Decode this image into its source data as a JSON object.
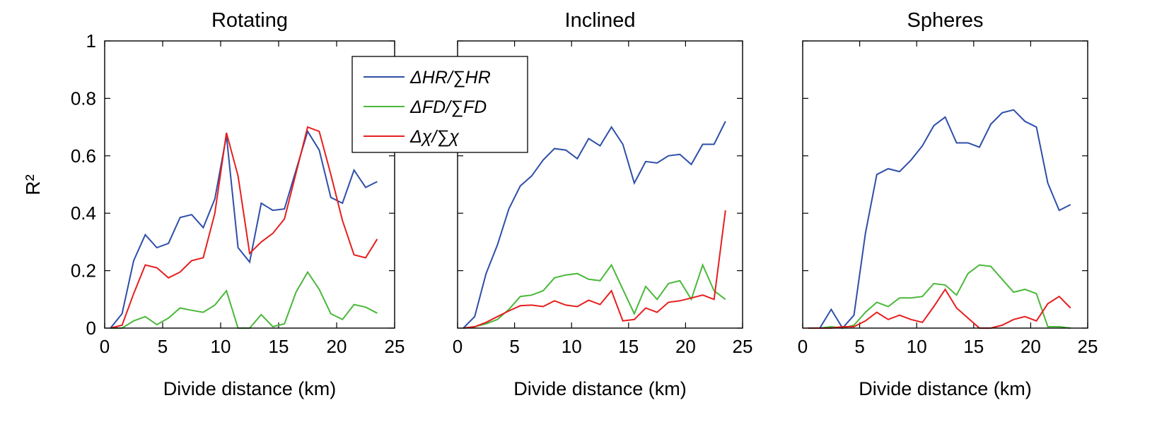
{
  "figure": {
    "ylabel": "R²"
  },
  "legend": {
    "entries": [
      {
        "label": "ΔHR/∑HR",
        "color": "#2e4ea8"
      },
      {
        "label": "ΔFD/∑FD",
        "color": "#4ab83a"
      },
      {
        "label": "Δχ/∑χ",
        "color": "#e61e1e"
      }
    ]
  },
  "chart_data": [
    {
      "type": "line",
      "title": "Rotating",
      "xlabel": "Divide distance (km)",
      "ylabel": "R²",
      "xlim": [
        0,
        25
      ],
      "ylim": [
        0,
        1
      ],
      "xticks": [
        0,
        5,
        10,
        15,
        20,
        25
      ],
      "yticks": [
        0,
        0.2,
        0.4,
        0.6,
        0.8,
        1
      ],
      "ytick_labels": [
        "0",
        "0.2",
        "0.4",
        "0.6",
        "0.8",
        "1"
      ],
      "x": [
        0.5,
        1.5,
        2.5,
        3.5,
        4.5,
        5.5,
        6.5,
        7.5,
        8.5,
        9.5,
        10.5,
        11.5,
        12.5,
        13.5,
        14.5,
        15.5,
        16.5,
        17.5,
        18.5,
        19.5,
        20.5,
        21.5,
        22.5,
        23.5
      ],
      "series": [
        {
          "name": "ΔHR/∑HR",
          "color": "#2e4ea8",
          "values": [
            0.0,
            0.05,
            0.235,
            0.325,
            0.28,
            0.295,
            0.385,
            0.395,
            0.35,
            0.45,
            0.67,
            0.28,
            0.23,
            0.435,
            0.41,
            0.415,
            0.55,
            0.685,
            0.62,
            0.455,
            0.435,
            0.55,
            0.49,
            0.51
          ]
        },
        {
          "name": "ΔFD/∑FD",
          "color": "#4ab83a",
          "values": [
            0.0,
            0.0,
            0.025,
            0.04,
            0.012,
            0.035,
            0.07,
            0.062,
            0.055,
            0.08,
            0.13,
            0.0,
            0.0,
            0.047,
            0.005,
            0.015,
            0.125,
            0.195,
            0.135,
            0.05,
            0.03,
            0.082,
            0.073,
            0.052
          ]
        },
        {
          "name": "Δχ/∑χ",
          "color": "#e61e1e",
          "values": [
            0.0,
            0.01,
            0.12,
            0.22,
            0.21,
            0.175,
            0.195,
            0.235,
            0.245,
            0.4,
            0.68,
            0.53,
            0.26,
            0.3,
            0.33,
            0.38,
            0.54,
            0.7,
            0.685,
            0.535,
            0.375,
            0.255,
            0.245,
            0.31
          ]
        }
      ]
    },
    {
      "type": "line",
      "title": "Inclined",
      "xlabel": "Divide distance (km)",
      "xlim": [
        0,
        25
      ],
      "ylim": [
        0,
        1
      ],
      "xticks": [
        0,
        5,
        10,
        15,
        20,
        25
      ],
      "x": [
        0.5,
        1.5,
        2.5,
        3.5,
        4.5,
        5.5,
        6.5,
        7.5,
        8.5,
        9.5,
        10.5,
        11.5,
        12.5,
        13.5,
        14.5,
        15.5,
        16.5,
        17.5,
        18.5,
        19.5,
        20.5,
        21.5,
        22.5,
        23.5
      ],
      "series": [
        {
          "name": "ΔHR/∑HR",
          "color": "#2e4ea8",
          "values": [
            0.0,
            0.04,
            0.19,
            0.29,
            0.415,
            0.495,
            0.53,
            0.585,
            0.625,
            0.62,
            0.59,
            0.66,
            0.635,
            0.7,
            0.64,
            0.505,
            0.58,
            0.575,
            0.6,
            0.605,
            0.57,
            0.64,
            0.64,
            0.72
          ]
        },
        {
          "name": "ΔFD/∑FD",
          "color": "#4ab83a",
          "values": [
            0.0,
            0.005,
            0.015,
            0.03,
            0.065,
            0.11,
            0.115,
            0.13,
            0.175,
            0.185,
            0.19,
            0.17,
            0.165,
            0.22,
            0.135,
            0.05,
            0.145,
            0.1,
            0.155,
            0.165,
            0.1,
            0.22,
            0.13,
            0.1
          ]
        },
        {
          "name": "Δχ/∑χ",
          "color": "#e61e1e",
          "values": [
            0.0,
            0.005,
            0.02,
            0.04,
            0.06,
            0.078,
            0.08,
            0.075,
            0.095,
            0.08,
            0.075,
            0.097,
            0.082,
            0.13,
            0.025,
            0.03,
            0.07,
            0.055,
            0.09,
            0.095,
            0.105,
            0.115,
            0.1,
            0.41
          ]
        }
      ]
    },
    {
      "type": "line",
      "title": "Spheres",
      "xlabel": "Divide distance (km)",
      "xlim": [
        0,
        25
      ],
      "ylim": [
        0,
        1
      ],
      "xticks": [
        0,
        5,
        10,
        15,
        20,
        25
      ],
      "x": [
        0.5,
        1.5,
        2.5,
        3.5,
        4.5,
        5.5,
        6.5,
        7.5,
        8.5,
        9.5,
        10.5,
        11.5,
        12.5,
        13.5,
        14.5,
        15.5,
        16.5,
        17.5,
        18.5,
        19.5,
        20.5,
        21.5,
        22.5,
        23.5
      ],
      "series": [
        {
          "name": "ΔHR/∑HR",
          "color": "#2e4ea8",
          "values": [
            0.0,
            0.0,
            0.065,
            0.0,
            0.045,
            0.33,
            0.535,
            0.555,
            0.545,
            0.585,
            0.635,
            0.705,
            0.735,
            0.645,
            0.645,
            0.63,
            0.71,
            0.75,
            0.76,
            0.72,
            0.7,
            0.505,
            0.41,
            0.43
          ]
        },
        {
          "name": "ΔFD/∑FD",
          "color": "#4ab83a",
          "values": [
            0.0,
            0.0,
            0.005,
            0.0,
            0.01,
            0.055,
            0.09,
            0.075,
            0.105,
            0.105,
            0.11,
            0.155,
            0.15,
            0.115,
            0.19,
            0.22,
            0.215,
            0.17,
            0.125,
            0.135,
            0.12,
            0.005,
            0.005,
            0.0
          ]
        },
        {
          "name": "Δχ/∑χ",
          "color": "#e61e1e",
          "values": [
            0.0,
            0.0,
            0.0,
            0.005,
            0.005,
            0.025,
            0.055,
            0.03,
            0.045,
            0.03,
            0.02,
            0.075,
            0.135,
            0.07,
            0.035,
            0.0,
            0.0,
            0.01,
            0.03,
            0.04,
            0.025,
            0.085,
            0.11,
            0.07
          ]
        }
      ]
    }
  ]
}
